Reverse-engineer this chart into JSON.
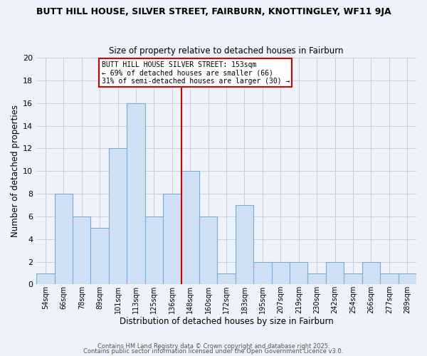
{
  "title": "BUTT HILL HOUSE, SILVER STREET, FAIRBURN, KNOTTINGLEY, WF11 9JA",
  "subtitle": "Size of property relative to detached houses in Fairburn",
  "xlabel": "Distribution of detached houses by size in Fairburn",
  "ylabel": "Number of detached properties",
  "bin_labels": [
    "54sqm",
    "66sqm",
    "78sqm",
    "89sqm",
    "101sqm",
    "113sqm",
    "125sqm",
    "136sqm",
    "148sqm",
    "160sqm",
    "172sqm",
    "183sqm",
    "195sqm",
    "207sqm",
    "219sqm",
    "230sqm",
    "242sqm",
    "254sqm",
    "266sqm",
    "277sqm",
    "289sqm"
  ],
  "bar_heights": [
    1,
    8,
    6,
    5,
    12,
    16,
    6,
    8,
    10,
    6,
    1,
    7,
    2,
    2,
    2,
    1,
    2,
    1,
    2,
    1,
    1
  ],
  "bar_color": "#d0e0f4",
  "bar_edge_color": "#7baad4",
  "grid_color": "#c8d0e0",
  "background_color": "#eef2fa",
  "plot_bg_color": "#eef2fa",
  "vline_color": "#cc0000",
  "annotation_box": {
    "line1": "BUTT HILL HOUSE SILVER STREET: 153sqm",
    "line2": "← 69% of detached houses are smaller (66)",
    "line3": "31% of semi-detached houses are larger (30) →"
  },
  "annotation_box_edge_color": "#cc0000",
  "ylim": [
    0,
    20
  ],
  "yticks": [
    0,
    2,
    4,
    6,
    8,
    10,
    12,
    14,
    16,
    18,
    20
  ],
  "footnote1": "Contains HM Land Registry data © Crown copyright and database right 2025.",
  "footnote2": "Contains public sector information licensed under the Open Government Licence v3.0."
}
